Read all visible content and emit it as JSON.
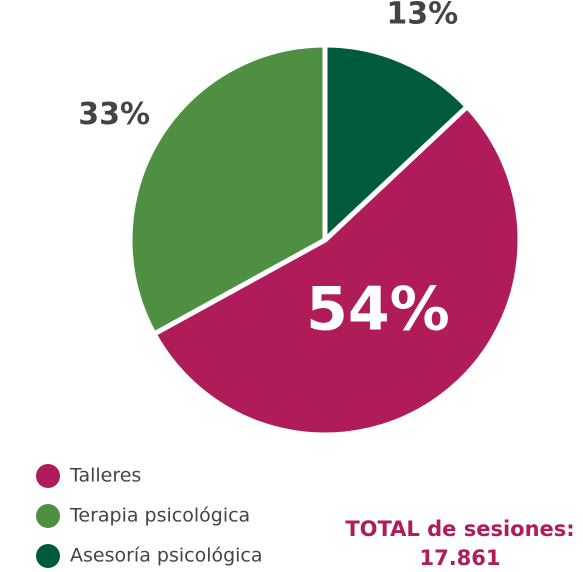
{
  "chart_data": {
    "type": "pie",
    "categories": [
      "Talleres",
      "Terapia psicológica",
      "Asesoría psicológica"
    ],
    "values": [
      54,
      33,
      13
    ],
    "value_labels": [
      "54%",
      "33%",
      "13%"
    ],
    "colors": [
      "#b01c5a",
      "#4e8f42",
      "#005a3c"
    ],
    "total_label": "TOTAL de sesiones:",
    "total_value": "17.861"
  }
}
